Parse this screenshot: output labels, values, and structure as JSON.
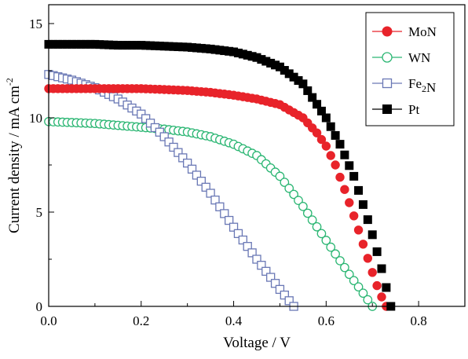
{
  "chart_data": {
    "type": "scatter",
    "title": "",
    "xlabel": "Voltage / V",
    "ylabel_main": "Current density / mA cm",
    "ylabel_sup": "-2",
    "xlim": [
      0.0,
      0.9
    ],
    "ylim": [
      0,
      16
    ],
    "x_ticks": [
      0.0,
      0.2,
      0.4,
      0.6,
      0.8
    ],
    "x_tick_labels": [
      "0.0",
      "0.2",
      "0.4",
      "0.6",
      "0.8"
    ],
    "y_ticks": [
      0,
      5,
      10,
      15
    ],
    "y_tick_labels": [
      "0",
      "5",
      "10",
      "15"
    ],
    "grid": false,
    "legend_position": "top-right",
    "series": [
      {
        "name_parts": [
          "MoN"
        ],
        "name_subs": [],
        "color": "#e8232a",
        "marker": "circle-filled",
        "jsc": 11.5,
        "voc": 0.73,
        "ff": 0.63,
        "x": [
          0.0,
          0.05,
          0.1,
          0.15,
          0.2,
          0.25,
          0.3,
          0.35,
          0.4,
          0.45,
          0.5,
          0.55,
          0.58,
          0.6,
          0.62,
          0.64,
          0.66,
          0.68,
          0.7,
          0.71,
          0.72,
          0.73
        ],
        "y": [
          11.55,
          11.55,
          11.55,
          11.55,
          11.55,
          11.5,
          11.45,
          11.35,
          11.2,
          11.0,
          10.7,
          10.0,
          9.2,
          8.5,
          7.5,
          6.2,
          4.8,
          3.3,
          1.8,
          1.1,
          0.5,
          0.0
        ]
      },
      {
        "name_parts": [
          "WN"
        ],
        "name_subs": [],
        "color": "#2bb673",
        "marker": "circle-open",
        "jsc": 9.8,
        "voc": 0.7,
        "ff": 0.52,
        "x": [
          0.0,
          0.05,
          0.1,
          0.15,
          0.2,
          0.25,
          0.3,
          0.35,
          0.4,
          0.45,
          0.5,
          0.55,
          0.6,
          0.65,
          0.68,
          0.7
        ],
        "y": [
          9.8,
          9.75,
          9.7,
          9.6,
          9.5,
          9.4,
          9.25,
          9.0,
          8.6,
          8.0,
          6.9,
          5.3,
          3.5,
          1.7,
          0.7,
          0.0
        ]
      },
      {
        "name_parts": [
          "Fe",
          "N"
        ],
        "name_subs": [
          "2"
        ],
        "color": "#6a78b5",
        "marker": "square-open",
        "jsc": 12.3,
        "voc": 0.53,
        "ff": 0.47,
        "x": [
          0.0,
          0.05,
          0.1,
          0.15,
          0.2,
          0.25,
          0.3,
          0.35,
          0.4,
          0.45,
          0.5,
          0.53
        ],
        "y": [
          12.3,
          12.0,
          11.6,
          11.0,
          10.2,
          9.0,
          7.6,
          6.0,
          4.2,
          2.5,
          0.9,
          0.0
        ]
      },
      {
        "name_parts": [
          "Pt"
        ],
        "name_subs": [],
        "color": "#000000",
        "marker": "square-filled",
        "jsc": 13.9,
        "voc": 0.74,
        "ff": 0.67,
        "x": [
          0.0,
          0.05,
          0.1,
          0.15,
          0.2,
          0.25,
          0.3,
          0.35,
          0.4,
          0.45,
          0.5,
          0.55,
          0.6,
          0.63,
          0.66,
          0.68,
          0.7,
          0.72,
          0.74
        ],
        "y": [
          13.9,
          13.9,
          13.9,
          13.85,
          13.85,
          13.8,
          13.75,
          13.65,
          13.5,
          13.2,
          12.7,
          11.8,
          10.0,
          8.6,
          6.9,
          5.4,
          3.8,
          2.0,
          0.0
        ]
      }
    ]
  }
}
